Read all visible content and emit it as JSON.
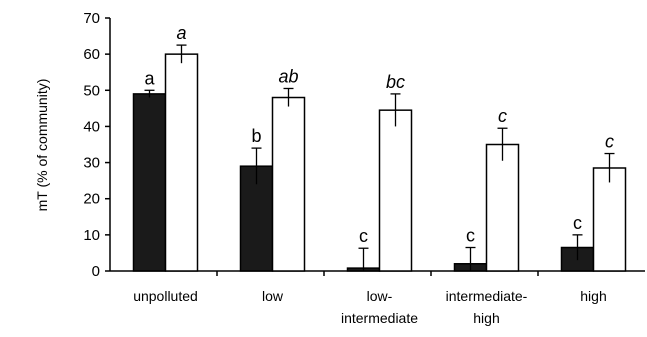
{
  "chart_data": {
    "type": "bar",
    "ylabel": "mT (% of community)",
    "ylim": [
      0,
      70
    ],
    "yticks": [
      0,
      10,
      20,
      30,
      40,
      50,
      60,
      70
    ],
    "grid": false,
    "legend": "none",
    "categories": [
      [
        "unpolluted"
      ],
      [
        "low"
      ],
      [
        "low-",
        "intermediate"
      ],
      [
        "intermediate-",
        "high"
      ],
      [
        "high"
      ]
    ],
    "series": [
      {
        "color": "#1a1a1a",
        "values": [
          49,
          29,
          0.8,
          2,
          6.5
        ],
        "errors": [
          1,
          5,
          5.5,
          4.5,
          3.5
        ],
        "letters": [
          "a",
          "b",
          "c",
          "c",
          "c"
        ],
        "letter_style": "normal"
      },
      {
        "color": "#ffffff",
        "values": [
          60,
          48,
          44.5,
          35,
          28.5
        ],
        "errors": [
          2.5,
          2.5,
          4.5,
          4.5,
          4
        ],
        "letters": [
          "a",
          "ab",
          "bc",
          "c",
          "c"
        ],
        "letter_style": "italic"
      }
    ]
  }
}
